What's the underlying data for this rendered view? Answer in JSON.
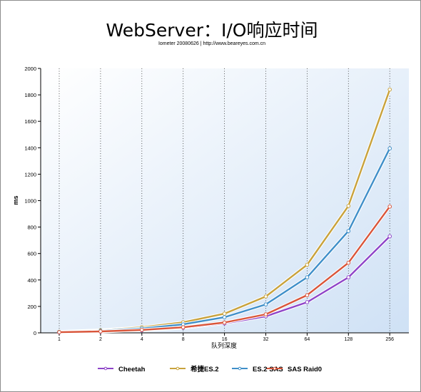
{
  "chart_data": {
    "type": "line",
    "title": "WebServer：I/O响应时间",
    "subtitle": "Iometer 20080626 | http://www.beareyes.com.cn",
    "xlabel": "队列深度",
    "ylabel": "ms",
    "categories": [
      "1",
      "2",
      "4",
      "8",
      "16",
      "32",
      "64",
      "128",
      "256"
    ],
    "ylim": [
      0,
      2000
    ],
    "yticks": [
      "0",
      "200",
      "400",
      "600",
      "800",
      "1000",
      "1200",
      "1400",
      "1600",
      "1800",
      "2000"
    ],
    "grid": {
      "vertical_dotted": true,
      "horizontal": false
    },
    "legend_position": "bottom",
    "series": [
      {
        "name": "Cheetah",
        "color": "#8e44c8",
        "values": [
          4,
          9,
          19,
          38,
          71,
          125,
          232,
          420,
          730
        ]
      },
      {
        "name": "希捷ES.2",
        "color": "#c8a23c",
        "values": [
          8,
          20,
          42,
          80,
          145,
          275,
          515,
          960,
          1840
        ]
      },
      {
        "name": "ES.2 SAS",
        "color": "#3f8fc9",
        "values": [
          6,
          16,
          33,
          64,
          118,
          215,
          420,
          770,
          1395
        ]
      },
      {
        "name": "SAS Raid0",
        "color": "#d9553a",
        "values": [
          5,
          11,
          22,
          42,
          78,
          140,
          285,
          530,
          955
        ]
      }
    ]
  }
}
